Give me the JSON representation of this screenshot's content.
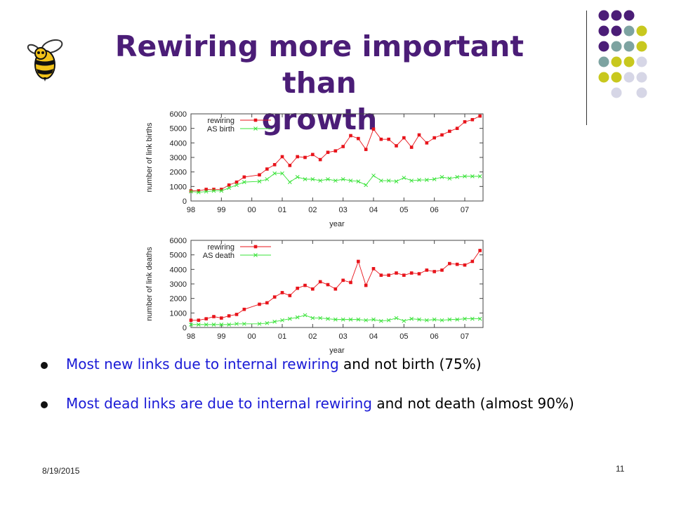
{
  "title": {
    "line1": "Rewiring more important than",
    "line2": "growth"
  },
  "icons": {
    "logo": "yellow-jacket-bee-icon",
    "decor": "dot-grid-icon"
  },
  "colors": {
    "title": "#4b1d77",
    "bullet_highlight": "#1a1ad6",
    "rewiring_series": "#e8141b",
    "as_series": "#39e339",
    "dot_purple": "#4b1d77",
    "dot_teal": "#7da3a1",
    "dot_yellow": "#c8c81e",
    "dot_lavender": "#d6d6e6"
  },
  "bullets": [
    {
      "highlight": "Most new links due to internal rewiring",
      "rest": " and not birth (75%)"
    },
    {
      "highlight": "Most dead links are due to internal rewiring",
      "rest": " and not death (almost 90%)"
    }
  ],
  "footer": {
    "date": "8/19/2015",
    "page": "11"
  },
  "chart_data": [
    {
      "type": "line",
      "xlabel": "year",
      "ylabel": "number of link births",
      "xlim": [
        1998,
        2007.6
      ],
      "ylim": [
        0,
        6000
      ],
      "yticks": [
        0,
        1000,
        2000,
        3000,
        4000,
        5000,
        6000
      ],
      "xticks": [
        1998,
        1999,
        2000,
        2001,
        2002,
        2003,
        2004,
        2005,
        2006,
        2007
      ],
      "xtick_labels": [
        "98",
        "99",
        "00",
        "01",
        "02",
        "03",
        "04",
        "05",
        "06",
        "07"
      ],
      "legend_position": "top-left",
      "x": [
        1998.0,
        1998.25,
        1998.5,
        1998.75,
        1999.0,
        1999.25,
        1999.5,
        1999.75,
        2000.25,
        2000.5,
        2000.75,
        2001.0,
        2001.25,
        2001.5,
        2001.75,
        2002.0,
        2002.25,
        2002.5,
        2002.75,
        2003.0,
        2003.25,
        2003.5,
        2003.75,
        2004.0,
        2004.25,
        2004.5,
        2004.75,
        2005.0,
        2005.25,
        2005.5,
        2005.75,
        2006.0,
        2006.25,
        2006.5,
        2006.75,
        2007.0,
        2007.25,
        2007.5
      ],
      "series": [
        {
          "name": "rewiring",
          "values": [
            700,
            700,
            800,
            800,
            800,
            1100,
            1300,
            1650,
            1800,
            2200,
            2500,
            3050,
            2450,
            3050,
            3000,
            3200,
            2850,
            3350,
            3450,
            3750,
            4500,
            4300,
            3550,
            4950,
            4250,
            4250,
            3800,
            4350,
            3700,
            4550,
            4000,
            4350,
            4550,
            4800,
            5000,
            5450,
            5600,
            5850
          ]
        },
        {
          "name": "AS birth",
          "values": [
            650,
            600,
            650,
            700,
            700,
            900,
            1100,
            1300,
            1350,
            1500,
            1900,
            1900,
            1300,
            1650,
            1500,
            1500,
            1400,
            1500,
            1400,
            1500,
            1400,
            1350,
            1100,
            1750,
            1400,
            1400,
            1350,
            1600,
            1400,
            1450,
            1450,
            1500,
            1650,
            1550,
            1650,
            1700,
            1700,
            1700
          ]
        }
      ]
    },
    {
      "type": "line",
      "xlabel": "year",
      "ylabel": "number of link deaths",
      "xlim": [
        1998,
        2007.6
      ],
      "ylim": [
        0,
        6000
      ],
      "yticks": [
        0,
        1000,
        2000,
        3000,
        4000,
        5000,
        6000
      ],
      "xticks": [
        1998,
        1999,
        2000,
        2001,
        2002,
        2003,
        2004,
        2005,
        2006,
        2007
      ],
      "xtick_labels": [
        "98",
        "99",
        "00",
        "01",
        "02",
        "03",
        "04",
        "05",
        "06",
        "07"
      ],
      "legend_position": "top-left",
      "x": [
        1998.0,
        1998.25,
        1998.5,
        1998.75,
        1999.0,
        1999.25,
        1999.5,
        1999.75,
        2000.25,
        2000.5,
        2000.75,
        2001.0,
        2001.25,
        2001.5,
        2001.75,
        2002.0,
        2002.25,
        2002.5,
        2002.75,
        2003.0,
        2003.25,
        2003.5,
        2003.75,
        2004.0,
        2004.25,
        2004.5,
        2004.75,
        2005.0,
        2005.25,
        2005.5,
        2005.75,
        2006.0,
        2006.25,
        2006.5,
        2006.75,
        2007.0,
        2007.25,
        2007.5
      ],
      "series": [
        {
          "name": "rewiring",
          "values": [
            500,
            500,
            600,
            750,
            650,
            800,
            900,
            1250,
            1600,
            1700,
            2100,
            2400,
            2200,
            2700,
            2900,
            2650,
            3150,
            2950,
            2650,
            3250,
            3100,
            4550,
            2900,
            4050,
            3600,
            3600,
            3750,
            3600,
            3750,
            3700,
            3950,
            3850,
            3950,
            4400,
            4350,
            4300,
            4550,
            5300
          ]
        },
        {
          "name": "AS death",
          "values": [
            200,
            200,
            200,
            200,
            200,
            200,
            250,
            250,
            250,
            300,
            400,
            500,
            600,
            700,
            850,
            650,
            650,
            600,
            550,
            550,
            550,
            550,
            500,
            550,
            450,
            500,
            650,
            450,
            600,
            550,
            500,
            550,
            500,
            550,
            550,
            600,
            600,
            600
          ]
        }
      ]
    }
  ]
}
